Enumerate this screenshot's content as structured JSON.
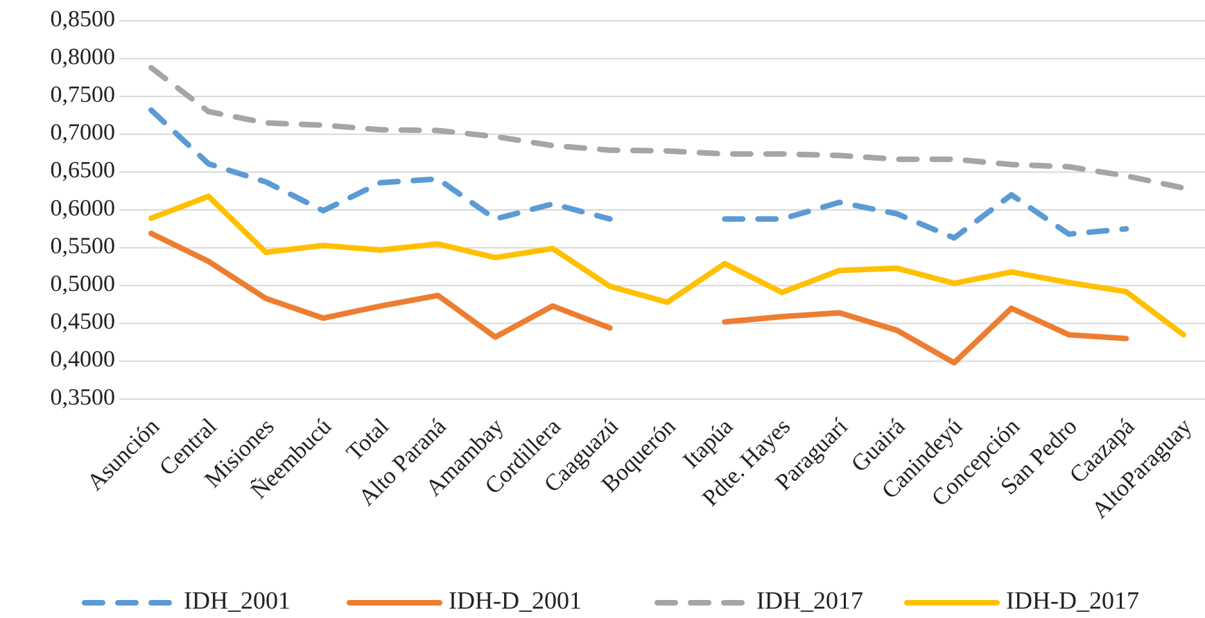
{
  "chart_data": {
    "type": "line",
    "categories": [
      "Asunción",
      "Central",
      "Misiones",
      "Ñeembucú",
      "Total",
      "Alto Paraná",
      "Amambay",
      "Cordillera",
      "Caaguazú",
      "Boquerón",
      "Itapúa",
      "Pdte. Hayes",
      "Paraguarí",
      "Guairá",
      "Canindeyú",
      "Concepción",
      "San Pedro",
      "Caazapá",
      "AltoParaguay"
    ],
    "series": [
      {
        "name": "IDH_2001",
        "color": "#5b9bd5",
        "dashed": true,
        "values": [
          0.732,
          0.661,
          0.637,
          0.599,
          0.636,
          0.641,
          0.588,
          0.608,
          0.588,
          null,
          0.588,
          0.588,
          0.61,
          0.595,
          0.563,
          0.62,
          0.568,
          0.575,
          null
        ]
      },
      {
        "name": "IDH-D_2001",
        "color": "#ed7d31",
        "dashed": false,
        "values": [
          0.569,
          0.532,
          0.483,
          0.457,
          0.473,
          0.487,
          0.432,
          0.473,
          0.444,
          null,
          0.452,
          0.459,
          0.464,
          0.441,
          0.398,
          0.47,
          0.435,
          0.43,
          null
        ]
      },
      {
        "name": "IDH_2017",
        "color": "#a5a5a5",
        "dashed": true,
        "values": [
          0.788,
          0.73,
          0.715,
          0.712,
          0.706,
          0.705,
          0.697,
          0.685,
          0.679,
          0.678,
          0.674,
          0.674,
          0.672,
          0.667,
          0.667,
          0.66,
          0.657,
          0.645,
          0.629
        ]
      },
      {
        "name": "IDH-D_2017",
        "color": "#ffc000",
        "dashed": false,
        "values": [
          0.589,
          0.618,
          0.544,
          0.553,
          0.547,
          0.555,
          0.537,
          0.549,
          0.499,
          0.478,
          0.529,
          0.491,
          0.52,
          0.523,
          0.503,
          0.518,
          0.504,
          0.492,
          0.435
        ]
      }
    ],
    "ylim": [
      0.35,
      0.85
    ],
    "yticks": [
      {
        "value": 0.35,
        "label": "0,3500"
      },
      {
        "value": 0.4,
        "label": "0,4000"
      },
      {
        "value": 0.45,
        "label": "0,4500"
      },
      {
        "value": 0.5,
        "label": "0,5000"
      },
      {
        "value": 0.55,
        "label": "0,5500"
      },
      {
        "value": 0.6,
        "label": "0,6000"
      },
      {
        "value": 0.65,
        "label": "0,6500"
      },
      {
        "value": 0.7,
        "label": "0,7000"
      },
      {
        "value": 0.75,
        "label": "0,7500"
      },
      {
        "value": 0.8,
        "label": "0,8000"
      },
      {
        "value": 0.85,
        "label": "0,8500"
      }
    ],
    "grid": true,
    "legend": "bottom"
  }
}
